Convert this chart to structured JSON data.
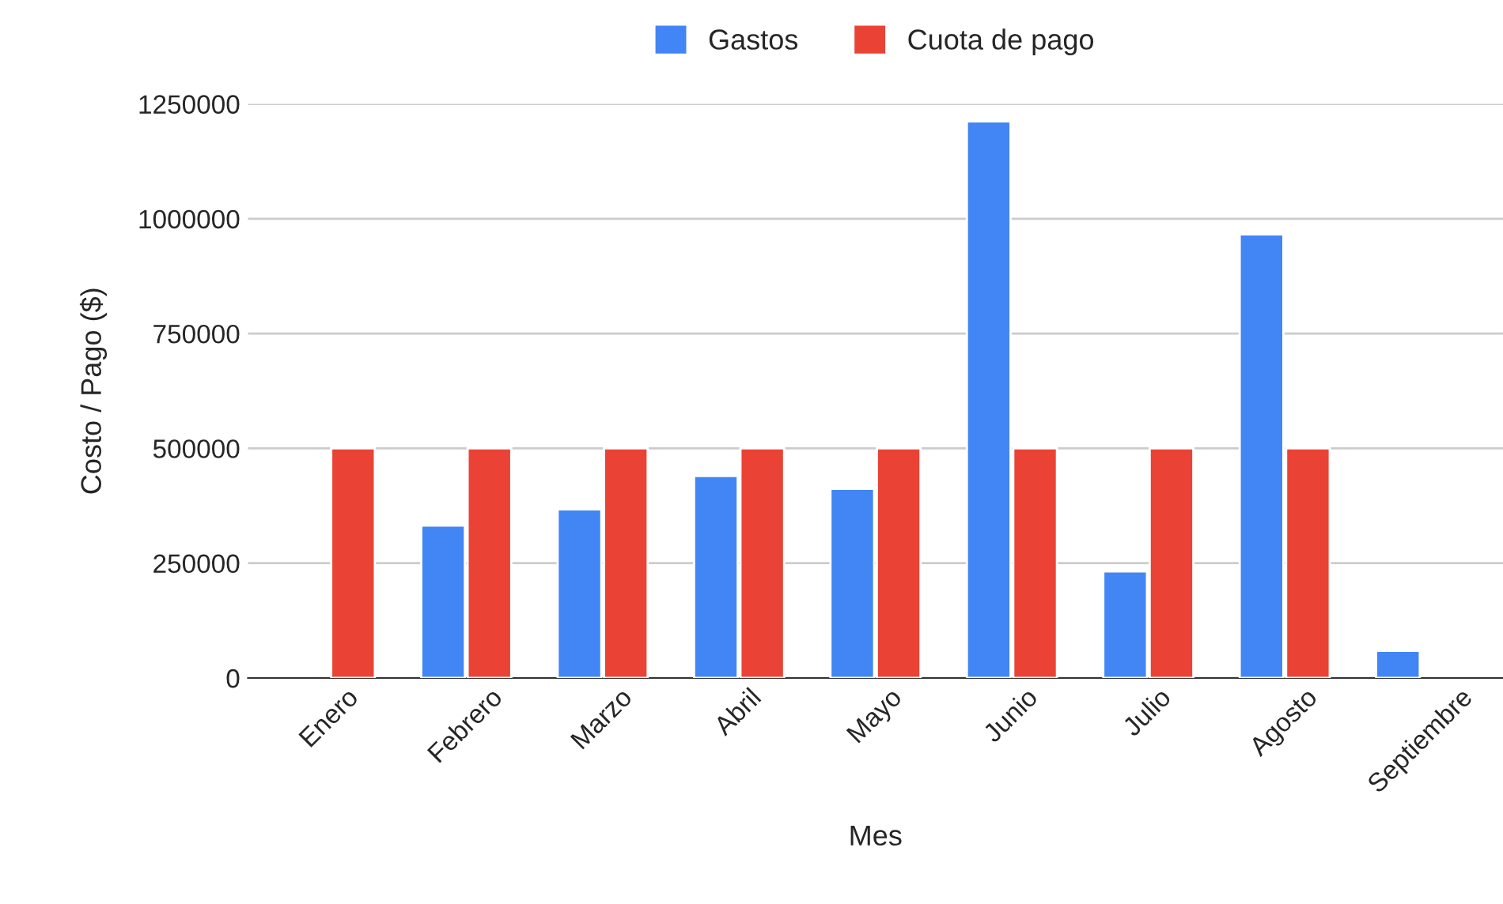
{
  "chart_data": {
    "type": "bar",
    "xlabel": "Mes",
    "ylabel": "Costo / Pago ($)",
    "categories": [
      "Enero",
      "Febrero",
      "Marzo",
      "Abril",
      "Mayo",
      "Junio",
      "Julio",
      "Agosto",
      "Septiembre"
    ],
    "series": [
      {
        "name": "Gastos",
        "color": "#4285f4",
        "values": [
          null,
          332000,
          367000,
          440000,
          412000,
          1212000,
          232000,
          966000,
          59000
        ]
      },
      {
        "name": "Cuota de pago",
        "color": "#ea4335",
        "values": [
          500000,
          500000,
          500000,
          500000,
          500000,
          500000,
          500000,
          500000,
          null
        ]
      }
    ],
    "ylim": [
      0,
      1250000
    ],
    "yticks": [
      0,
      250000,
      500000,
      750000,
      1000000,
      1250000
    ],
    "grid": "y",
    "legend": "top"
  }
}
